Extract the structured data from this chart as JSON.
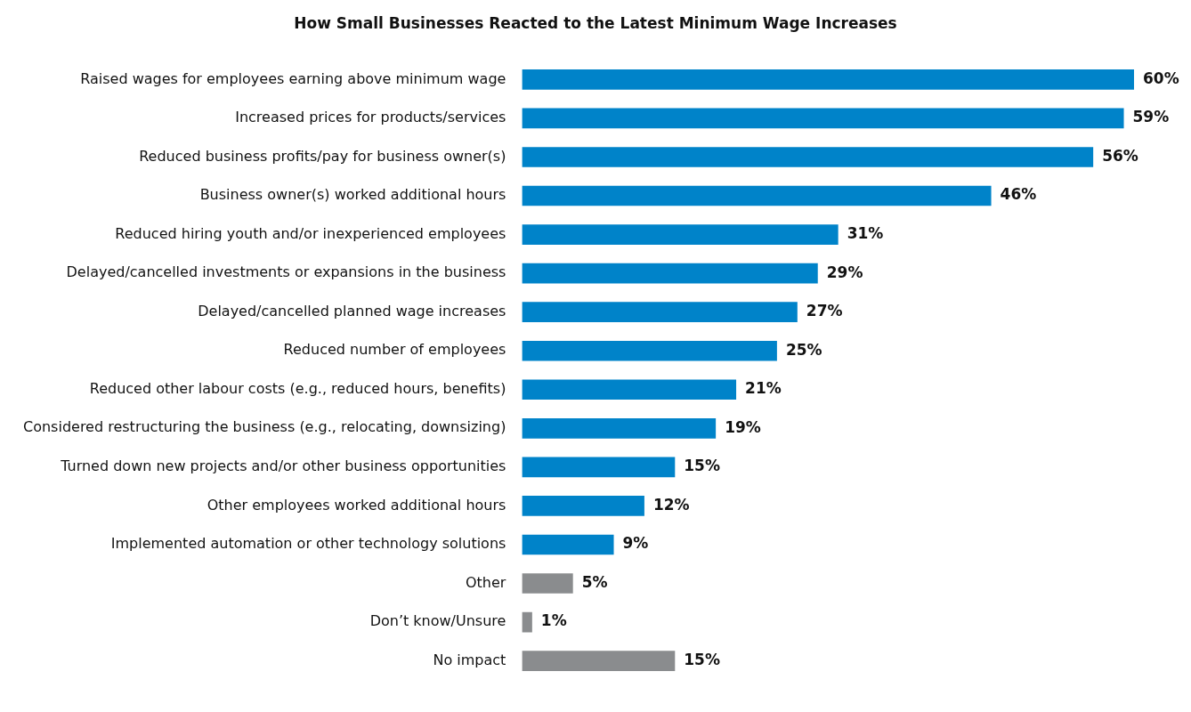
{
  "chart_data": {
    "type": "bar",
    "orientation": "horizontal",
    "title": "How Small Businesses Reacted to the Latest Minimum Wage Increases",
    "categories": [
      "Raised wages for employees earning above minimum wage",
      "Increased prices for products/services",
      "Reduced business profits/pay for business owner(s)",
      "Business owner(s) worked additional hours",
      "Reduced hiring youth and/or inexperienced employees",
      "Delayed/cancelled investments or expansions in the business",
      "Delayed/cancelled planned wage increases",
      "Reduced number of employees",
      "Reduced other labour costs (e.g., reduced hours, benefits)",
      "Considered restructuring the business (e.g., relocating, downsizing)",
      "Turned down new projects and/or other business opportunities",
      "Other employees worked additional hours",
      "Implemented automation or other technology solutions",
      "Other",
      "Don’t know/Unsure",
      "No impact"
    ],
    "values": [
      60,
      59,
      56,
      46,
      31,
      29,
      27,
      25,
      21,
      19,
      15,
      12,
      9,
      5,
      1,
      15
    ],
    "colors": [
      "#0083c9",
      "#0083c9",
      "#0083c9",
      "#0083c9",
      "#0083c9",
      "#0083c9",
      "#0083c9",
      "#0083c9",
      "#0083c9",
      "#0083c9",
      "#0083c9",
      "#0083c9",
      "#0083c9",
      "#8a8c8e",
      "#8a8c8e",
      "#8a8c8e"
    ],
    "value_labels": [
      "60%",
      "59%",
      "56%",
      "46%",
      "31%",
      "29%",
      "27%",
      "25%",
      "21%",
      "19%",
      "15%",
      "12%",
      "9%",
      "5%",
      "1%",
      "15%"
    ],
    "xlim": [
      0,
      60
    ],
    "tick_labels": "y",
    "grid": false,
    "legend": false
  }
}
